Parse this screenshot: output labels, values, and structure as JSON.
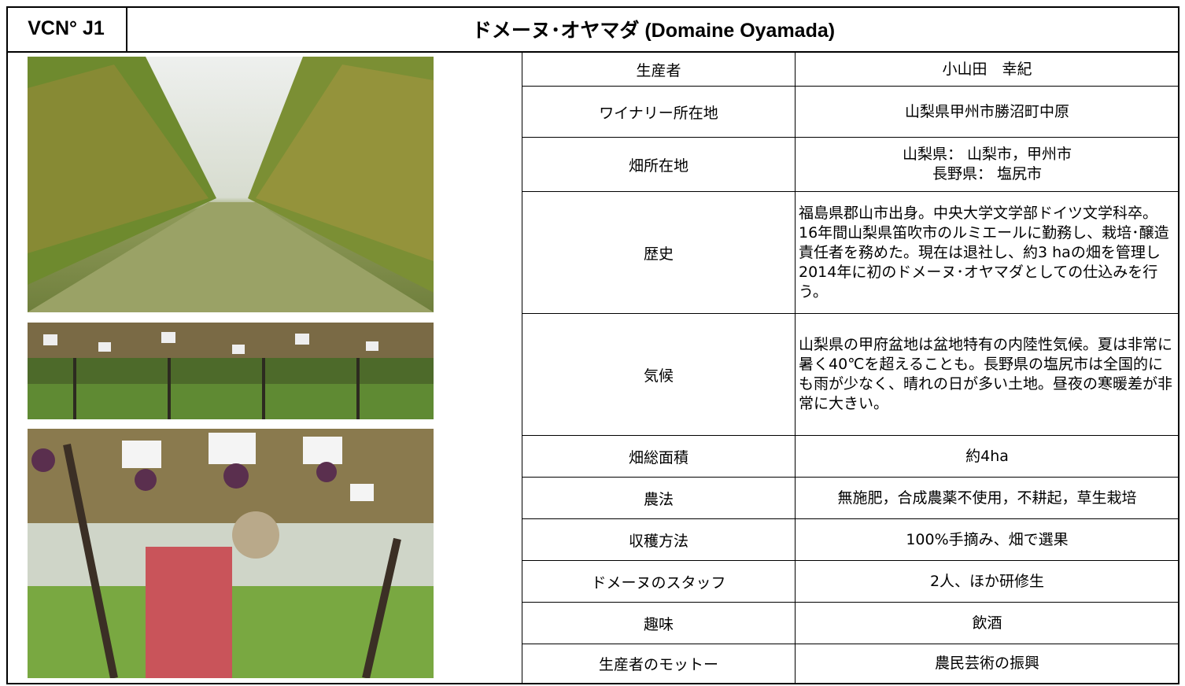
{
  "header": {
    "code": "VCN° J1",
    "title": "ドメーヌ･オヤマダ (Domaine Oyamada)"
  },
  "table": {
    "rows": [
      {
        "label": "生産者",
        "value": "小山田　幸紀"
      },
      {
        "label": "ワイナリー所在地",
        "value": "山梨県甲州市勝沼町中原"
      },
      {
        "label": "畑所在地",
        "value": [
          "山梨県：  山梨市，甲州市",
          "長野県：  塩尻市"
        ]
      },
      {
        "label": "歴史",
        "value": "福島県郡山市出身。中央大学文学部ドイツ文学科卒。16年間山梨県笛吹市のルミエールに勤務し、栽培･醸造責任者を務めた。現在は退社し、約3 haの畑を管理し2014年に初のドメーヌ･オヤマダとしての仕込みを行う。"
      },
      {
        "label": "気候",
        "value": "山梨県の甲府盆地は盆地特有の内陸性気候。夏は非常に暑く40℃を超えることも。長野県の塩尻市は全国的にも雨が少なく、晴れの日が多い土地。昼夜の寒暖差が非常に大きい。"
      },
      {
        "label": "畑総面積",
        "value": "約4ha"
      },
      {
        "label": "農法",
        "value": "無施肥，合成農薬不使用，不耕起，草生栽培"
      },
      {
        "label": "収穫方法",
        "value": "100%手摘み、畑で選果"
      },
      {
        "label": "ドメーヌのスタッフ",
        "value": "2人、ほか研修生"
      },
      {
        "label": "趣味",
        "value": "飲酒"
      },
      {
        "label": "生産者のモットー",
        "value": "農民芸術の振興"
      }
    ]
  }
}
